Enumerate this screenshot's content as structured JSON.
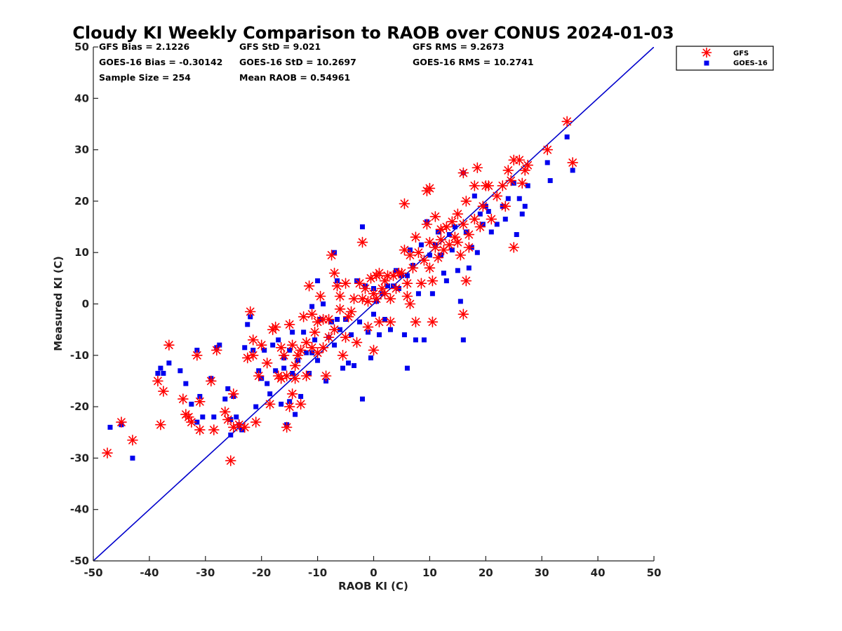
{
  "chart_data": {
    "type": "scatter",
    "title": "Cloudy KI Weekly Comparison to RAOB over CONUS 2024-01-03",
    "xlabel": "RAOB KI (C)",
    "ylabel": "Measured KI (C)",
    "xlim": [
      -50,
      50
    ],
    "ylim": [
      -50,
      50
    ],
    "xticks": [
      "-50",
      "-40",
      "-30",
      "-20",
      "-10",
      "0",
      "10",
      "20",
      "30",
      "40",
      "50"
    ],
    "yticks": [
      "-50",
      "-40",
      "-30",
      "-20",
      "-10",
      "0",
      "10",
      "20",
      "30",
      "40",
      "50"
    ],
    "grid": false,
    "legend_position": "top-right, outside plot",
    "reference_line": {
      "x": [
        -50,
        50
      ],
      "y": [
        -50,
        50
      ],
      "color": "#0000cc"
    },
    "stats": [
      "GFS Bias = 2.1226",
      "GFS StD = 9.021",
      "GFS RMS = 9.2673",
      "GOES-16 Bias = -0.30142",
      "GOES-16 StD = 10.2697",
      "GOES-16 RMS = 10.2741",
      "Sample Size = 254",
      "Mean RAOB = 0.54961"
    ],
    "series": [
      {
        "name": "GFS",
        "marker": "asterisk",
        "color": "#ff0000",
        "points": [
          [
            -47.5,
            -29
          ],
          [
            -45,
            -23
          ],
          [
            -43,
            -26.5
          ],
          [
            -38.5,
            -15
          ],
          [
            -38,
            -23.5
          ],
          [
            -37.5,
            -17
          ],
          [
            -36.5,
            -8
          ],
          [
            -34,
            -18.5
          ],
          [
            -33.5,
            -21.5
          ],
          [
            -33,
            -22
          ],
          [
            -32.5,
            -23
          ],
          [
            -31.5,
            -10
          ],
          [
            -31,
            -24.5
          ],
          [
            -31,
            -19
          ],
          [
            -29,
            -15
          ],
          [
            -28.5,
            -24.5
          ],
          [
            -28,
            -9
          ],
          [
            -26.5,
            -21
          ],
          [
            -26,
            -22.5
          ],
          [
            -25.5,
            -30.5
          ],
          [
            -25,
            -24
          ],
          [
            -25,
            -17.5
          ],
          [
            -24,
            -23.5
          ],
          [
            -23,
            -24
          ],
          [
            -22.5,
            -10.5
          ],
          [
            -22,
            -1.5
          ],
          [
            -21.5,
            -10
          ],
          [
            -21.5,
            -7
          ],
          [
            -21,
            -23
          ],
          [
            -20.5,
            -14
          ],
          [
            -20,
            -8
          ],
          [
            -19,
            -11.5
          ],
          [
            -18.5,
            -19.5
          ],
          [
            -18,
            -5
          ],
          [
            -17.5,
            -4.5
          ],
          [
            -17,
            -14
          ],
          [
            -16.5,
            -14.5
          ],
          [
            -16.5,
            -8.5
          ],
          [
            -16,
            -10
          ],
          [
            -15.5,
            -14
          ],
          [
            -15.5,
            -24
          ],
          [
            -15,
            -4
          ],
          [
            -15,
            -20
          ],
          [
            -14.5,
            -17.5
          ],
          [
            -14.5,
            -8
          ],
          [
            -14,
            -12
          ],
          [
            -14,
            -14.5
          ],
          [
            -13.5,
            -10
          ],
          [
            -13,
            -9
          ],
          [
            -13,
            -19.5
          ],
          [
            -12.5,
            -2.5
          ],
          [
            -12,
            -7.5
          ],
          [
            -12,
            -14
          ],
          [
            -11.5,
            3.5
          ],
          [
            -11,
            -8.5
          ],
          [
            -11,
            -2
          ],
          [
            -10.5,
            -5.5
          ],
          [
            -10,
            -3.5
          ],
          [
            -10,
            -9.5
          ],
          [
            -9.5,
            1.5
          ],
          [
            -9,
            -8.5
          ],
          [
            -9,
            -3
          ],
          [
            -8.5,
            -14
          ],
          [
            -8,
            -6.5
          ],
          [
            -8,
            -3
          ],
          [
            -7.5,
            9.5
          ],
          [
            -7,
            6
          ],
          [
            -7,
            -5
          ],
          [
            -6.5,
            3.5
          ],
          [
            -6,
            1.5
          ],
          [
            -6,
            -1
          ],
          [
            -5.5,
            -10
          ],
          [
            -5,
            -6.5
          ],
          [
            -5,
            4
          ],
          [
            -4.5,
            -2.5
          ],
          [
            -4,
            -1.5
          ],
          [
            -3.5,
            1
          ],
          [
            -3,
            -7.5
          ],
          [
            -2.5,
            4
          ],
          [
            -2,
            1
          ],
          [
            -2,
            12
          ],
          [
            -1.5,
            3
          ],
          [
            -1,
            -4.5
          ],
          [
            -1,
            0.5
          ],
          [
            -0.5,
            5
          ],
          [
            0,
            -9
          ],
          [
            0,
            2
          ],
          [
            0.5,
            5.5
          ],
          [
            0.5,
            1
          ],
          [
            1,
            -3.5
          ],
          [
            1,
            6
          ],
          [
            1.5,
            3
          ],
          [
            2,
            4.5
          ],
          [
            2,
            2
          ],
          [
            2.5,
            5.5
          ],
          [
            3,
            -3.5
          ],
          [
            3,
            1
          ],
          [
            3.5,
            5.5
          ],
          [
            4,
            3
          ],
          [
            4.5,
            6
          ],
          [
            5,
            6
          ],
          [
            5.5,
            10.5
          ],
          [
            5.5,
            19.5
          ],
          [
            6,
            1.5
          ],
          [
            6,
            4
          ],
          [
            6.5,
            0
          ],
          [
            6.5,
            9.5
          ],
          [
            7,
            7
          ],
          [
            7.5,
            13
          ],
          [
            7.5,
            -3.5
          ],
          [
            8,
            10
          ],
          [
            8.5,
            4
          ],
          [
            9,
            8.5
          ],
          [
            9.5,
            15.5
          ],
          [
            9.5,
            22
          ],
          [
            10,
            12
          ],
          [
            10,
            7
          ],
          [
            10,
            22.5
          ],
          [
            10.5,
            -3.5
          ],
          [
            10.5,
            4.5
          ],
          [
            11,
            11
          ],
          [
            11,
            17
          ],
          [
            11.5,
            9
          ],
          [
            12,
            12.5
          ],
          [
            12,
            14.5
          ],
          [
            12.5,
            10.5
          ],
          [
            13,
            15
          ],
          [
            13.5,
            11.5
          ],
          [
            14,
            16
          ],
          [
            14.5,
            13
          ],
          [
            15,
            17.5
          ],
          [
            15,
            12
          ],
          [
            15.5,
            9.5
          ],
          [
            16,
            15.5
          ],
          [
            16,
            25.5
          ],
          [
            16,
            -2
          ],
          [
            16.5,
            4.5
          ],
          [
            16.5,
            20
          ],
          [
            17,
            13.5
          ],
          [
            17,
            11
          ],
          [
            18,
            16.5
          ],
          [
            18,
            23
          ],
          [
            18.5,
            26.5
          ],
          [
            19,
            15
          ],
          [
            19.5,
            19
          ],
          [
            20,
            23
          ],
          [
            20.5,
            23
          ],
          [
            21,
            16.5
          ],
          [
            22,
            21
          ],
          [
            23,
            23
          ],
          [
            23.5,
            19
          ],
          [
            24,
            26
          ],
          [
            24.5,
            24
          ],
          [
            25,
            28
          ],
          [
            25,
            11
          ],
          [
            26,
            28
          ],
          [
            26.5,
            23.5
          ],
          [
            27,
            26
          ],
          [
            27.5,
            27
          ],
          [
            31,
            30
          ],
          [
            34.5,
            35.5
          ],
          [
            35.5,
            27.5
          ]
        ]
      },
      {
        "name": "GOES-16",
        "marker": "square",
        "color": "#0000ee",
        "points": [
          [
            -47,
            -24
          ],
          [
            -45,
            -23.5
          ],
          [
            -43,
            -30
          ],
          [
            -38.5,
            -13.5
          ],
          [
            -38,
            -12.5
          ],
          [
            -37.5,
            -13.5
          ],
          [
            -36.5,
            -11.5
          ],
          [
            -34.5,
            -13
          ],
          [
            -33.5,
            -15.5
          ],
          [
            -32.5,
            -19.5
          ],
          [
            -31.5,
            -23
          ],
          [
            -31.5,
            -9
          ],
          [
            -31,
            -18
          ],
          [
            -30.5,
            -22
          ],
          [
            -29,
            -14.5
          ],
          [
            -28.5,
            -22
          ],
          [
            -28,
            -8.5
          ],
          [
            -27.5,
            -8
          ],
          [
            -26.5,
            -18.5
          ],
          [
            -26,
            -16.5
          ],
          [
            -25.5,
            -25.5
          ],
          [
            -25.5,
            -22.5
          ],
          [
            -25,
            -18
          ],
          [
            -24.5,
            -22
          ],
          [
            -24,
            -23.5
          ],
          [
            -23.5,
            -24.5
          ],
          [
            -23,
            -8.5
          ],
          [
            -22.5,
            -4
          ],
          [
            -22,
            -2.5
          ],
          [
            -21.5,
            -9
          ],
          [
            -21,
            -20
          ],
          [
            -20.5,
            -13
          ],
          [
            -20,
            -14.5
          ],
          [
            -19.5,
            -9
          ],
          [
            -19,
            -15.5
          ],
          [
            -18.5,
            -17.5
          ],
          [
            -18,
            -8
          ],
          [
            -17.5,
            -13
          ],
          [
            -17,
            -7
          ],
          [
            -16.5,
            -19.5
          ],
          [
            -16,
            -12.5
          ],
          [
            -16,
            -10.5
          ],
          [
            -15.5,
            -23.5
          ],
          [
            -15,
            -9
          ],
          [
            -15,
            -19
          ],
          [
            -14.5,
            -5.5
          ],
          [
            -14.5,
            -13.5
          ],
          [
            -14,
            -21.5
          ],
          [
            -13.5,
            -11
          ],
          [
            -13,
            -18
          ],
          [
            -12.5,
            -5.5
          ],
          [
            -12,
            -9.5
          ],
          [
            -11.5,
            -13.5
          ],
          [
            -11,
            -0.5
          ],
          [
            -11,
            -9.5
          ],
          [
            -10.5,
            -7
          ],
          [
            -10,
            4.5
          ],
          [
            -10,
            -11
          ],
          [
            -9.5,
            -3
          ],
          [
            -9,
            0
          ],
          [
            -8.5,
            -15
          ],
          [
            -8,
            -6.5
          ],
          [
            -7.5,
            -3.5
          ],
          [
            -7,
            10
          ],
          [
            -7,
            -8
          ],
          [
            -6.5,
            -3
          ],
          [
            -6.5,
            4.5
          ],
          [
            -6,
            -5
          ],
          [
            -5.5,
            -12.5
          ],
          [
            -5,
            -3
          ],
          [
            -4.5,
            -11.5
          ],
          [
            -4,
            -6
          ],
          [
            -3.5,
            -12
          ],
          [
            -3,
            4.5
          ],
          [
            -2.5,
            -3.5
          ],
          [
            -2,
            15
          ],
          [
            -2,
            -18.5
          ],
          [
            -1.5,
            3.5
          ],
          [
            -1,
            -5.5
          ],
          [
            -0.5,
            -10.5
          ],
          [
            0,
            3
          ],
          [
            0,
            -2
          ],
          [
            0.5,
            0.5
          ],
          [
            1,
            -6
          ],
          [
            1.5,
            2
          ],
          [
            2,
            -3
          ],
          [
            2.5,
            3.5
          ],
          [
            3,
            -5
          ],
          [
            3.5,
            3.5
          ],
          [
            4,
            6.5
          ],
          [
            4.5,
            3
          ],
          [
            5,
            5.5
          ],
          [
            5.5,
            -6
          ],
          [
            6,
            -12.5
          ],
          [
            6,
            5.5
          ],
          [
            6.5,
            10.5
          ],
          [
            7,
            7.5
          ],
          [
            7.5,
            -7
          ],
          [
            8,
            2
          ],
          [
            8.5,
            11.5
          ],
          [
            9,
            -7
          ],
          [
            9.5,
            16
          ],
          [
            10,
            9.5
          ],
          [
            10.5,
            2
          ],
          [
            11,
            11.5
          ],
          [
            11.5,
            14
          ],
          [
            12,
            9.5
          ],
          [
            12.5,
            6
          ],
          [
            13,
            4.5
          ],
          [
            13.5,
            13.5
          ],
          [
            14,
            10.5
          ],
          [
            14.5,
            15
          ],
          [
            15,
            6.5
          ],
          [
            15.5,
            0.5
          ],
          [
            16,
            25.5
          ],
          [
            16,
            -7
          ],
          [
            16.5,
            14
          ],
          [
            17,
            7
          ],
          [
            17.5,
            11
          ],
          [
            18,
            21
          ],
          [
            18.5,
            10
          ],
          [
            19,
            17.5
          ],
          [
            19.5,
            15.5
          ],
          [
            20,
            19
          ],
          [
            20.5,
            18
          ],
          [
            21,
            14
          ],
          [
            22,
            15.5
          ],
          [
            23,
            19
          ],
          [
            23.5,
            16.5
          ],
          [
            24,
            20.5
          ],
          [
            25,
            23.5
          ],
          [
            25.5,
            13.5
          ],
          [
            26,
            20.5
          ],
          [
            26.5,
            17.5
          ],
          [
            27,
            19
          ],
          [
            27.5,
            23
          ],
          [
            31,
            27.5
          ],
          [
            31.5,
            24
          ],
          [
            34.5,
            32.5
          ],
          [
            35.5,
            26
          ]
        ]
      }
    ]
  }
}
